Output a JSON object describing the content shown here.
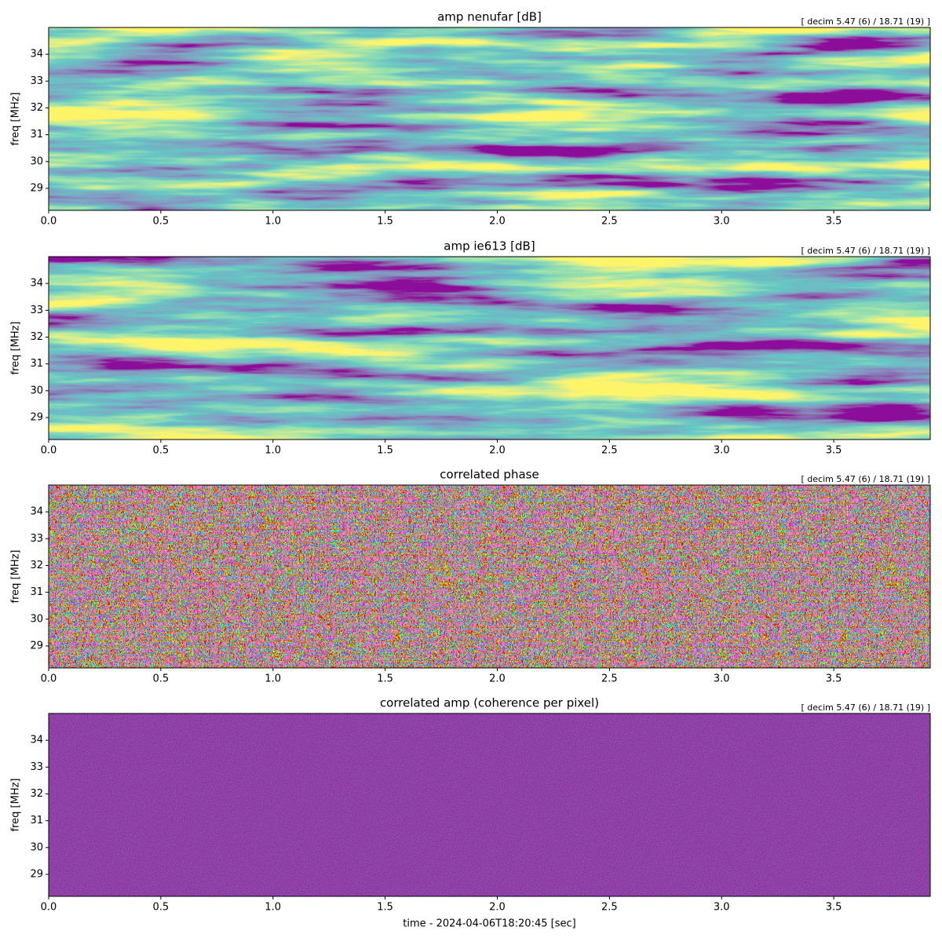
{
  "chart_data": [
    {
      "type": "heatmap",
      "title": "amp nenufar [dB]",
      "annotation": "[ decim 5.47 (6) / 18.71 (19) ]",
      "ylabel": "freq [MHz]",
      "colormap": "viridis",
      "xlim": [
        0,
        3.93
      ],
      "ylim": [
        28.18,
        35.0
      ],
      "xticks": [
        {
          "value": 0,
          "label": "0.0"
        },
        0.5,
        {
          "value": 1,
          "label": "1.0"
        },
        1.5,
        {
          "value": 2,
          "label": "2.0"
        },
        2.5,
        {
          "value": 3,
          "label": "3.0"
        },
        3.5
      ],
      "yticks": [
        29,
        30,
        31,
        32,
        33,
        34
      ]
    },
    {
      "type": "heatmap",
      "title": "amp ie613 [dB]",
      "annotation": "[ decim 5.47 (6) / 18.71 (19) ]",
      "ylabel": "freq [MHz]",
      "colormap": "viridis",
      "xlim": [
        0,
        3.93
      ],
      "ylim": [
        28.18,
        35.0
      ],
      "xticks": [
        {
          "value": 0,
          "label": "0.0"
        },
        0.5,
        {
          "value": 1,
          "label": "1.0"
        },
        1.5,
        {
          "value": 2,
          "label": "2.0"
        },
        2.5,
        {
          "value": 3,
          "label": "3.0"
        },
        3.5
      ],
      "yticks": [
        29,
        30,
        31,
        32,
        33,
        34
      ]
    },
    {
      "type": "heatmap",
      "title": "correlated phase",
      "annotation": "[ decim 5.47 (6) / 18.71 (19) ]",
      "ylabel": "freq [MHz]",
      "colormap": "hsv",
      "xlim": [
        0,
        3.93
      ],
      "ylim": [
        28.18,
        35.0
      ],
      "xticks": [
        {
          "value": 0,
          "label": "0.0"
        },
        0.5,
        {
          "value": 1,
          "label": "1.0"
        },
        1.5,
        {
          "value": 2,
          "label": "2.0"
        },
        2.5,
        {
          "value": 3,
          "label": "3.0"
        },
        3.5
      ],
      "yticks": [
        29,
        30,
        31,
        32,
        33,
        34
      ]
    },
    {
      "type": "heatmap",
      "title": "correlated amp (coherence per pixel)",
      "annotation": "[ decim 5.47 (6) / 18.71 (19) ]",
      "ylabel": "freq [MHz]",
      "xlabel": "time - 2024-04-06T18:20:45 [sec]",
      "colormap": "viridis",
      "xlim": [
        0,
        3.93
      ],
      "ylim": [
        28.18,
        35.0
      ],
      "xticks": [
        {
          "value": 0,
          "label": "0.0"
        },
        0.5,
        {
          "value": 1,
          "label": "1.0"
        },
        1.5,
        {
          "value": 2,
          "label": "2.0"
        },
        2.5,
        {
          "value": 3,
          "label": "3.0"
        },
        3.5
      ],
      "yticks": [
        29,
        30,
        31,
        32,
        33,
        34
      ]
    }
  ]
}
